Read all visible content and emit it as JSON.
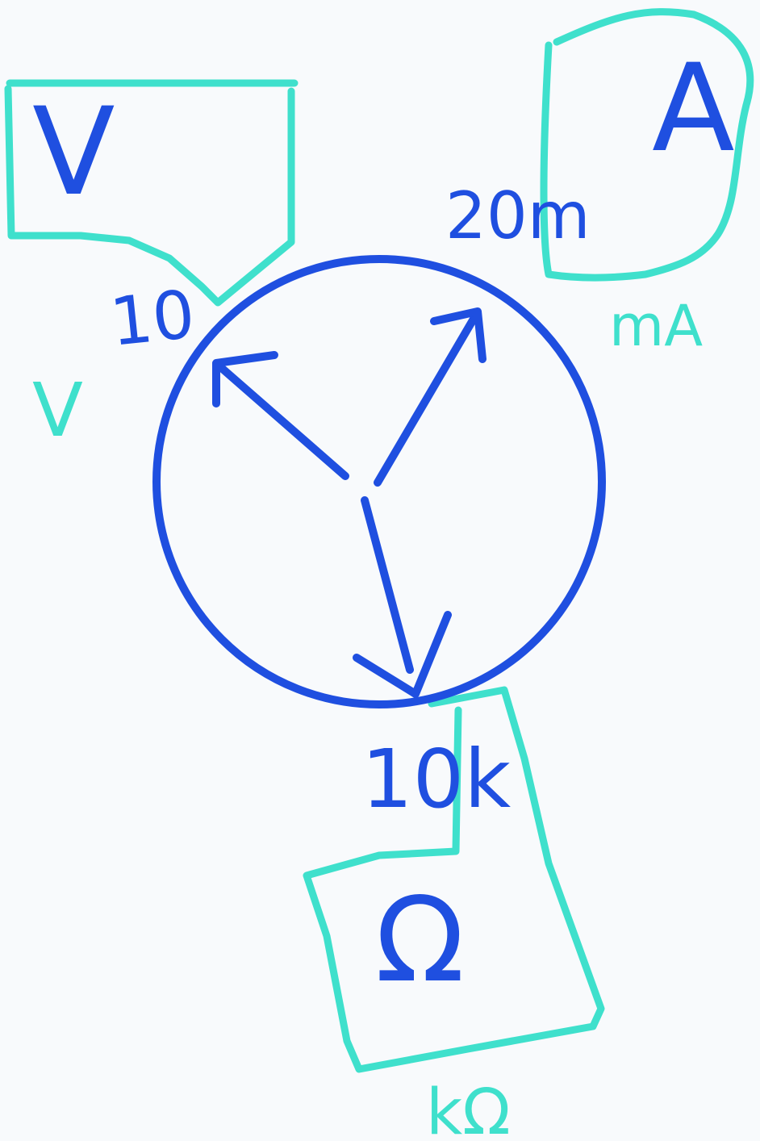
{
  "colors": {
    "background": "#f8fafc",
    "ink_blue": "#1f4fe0",
    "ink_teal": "#3fe0cc"
  },
  "dial": {
    "voltage_value": "10",
    "current_value": "20m",
    "resistance_value": "10k"
  },
  "boxes": {
    "voltage_symbol": "V",
    "current_symbol": "A",
    "resistance_symbol": "Ω"
  },
  "units": {
    "voltage_unit": "V",
    "current_unit": "mA",
    "resistance_unit": "kΩ"
  }
}
